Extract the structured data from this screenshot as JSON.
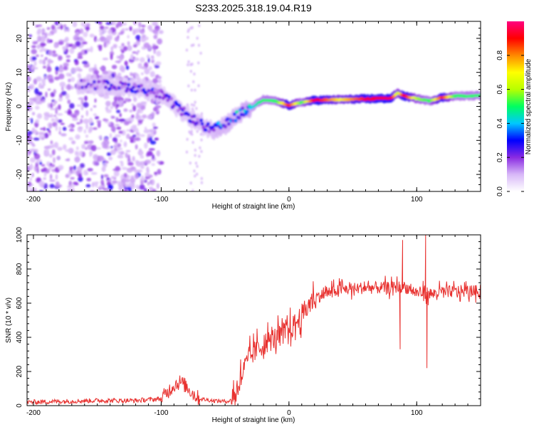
{
  "title": "S233.2025.318.19.04.R19",
  "chart_data": [
    {
      "type": "heatmap",
      "xlabel": "Height of straight line (km)",
      "ylabel": "Frequency (Hz)",
      "xlim": [
        -205,
        150
      ],
      "ylim": [
        -25,
        25
      ],
      "xticks": [
        -200,
        -100,
        0,
        100
      ],
      "yticks": [
        -20,
        -10,
        0,
        10,
        20
      ],
      "colorbar": {
        "label": "Normalized spectral amplitude",
        "range": [
          0,
          1
        ],
        "ticks": [
          0.0,
          0.2,
          0.4,
          0.6,
          0.8
        ],
        "tick_labels": [
          "0.0",
          "0.2",
          "0.4",
          "0.6",
          "0.8"
        ],
        "colors": [
          "#ffffff",
          "#d8b8f8",
          "#8a2be2",
          "#0000ff",
          "#00c8ff",
          "#00ff60",
          "#b8ff00",
          "#ffff00",
          "#ff8800",
          "#ff0000",
          "#ff0080"
        ]
      },
      "ridge": {
        "x": [
          -160,
          -140,
          -120,
          -100,
          -90,
          -80,
          -70,
          -60,
          -55,
          -50,
          -40,
          -30,
          -20,
          -10,
          0,
          10,
          20,
          40,
          60,
          80,
          85,
          90,
          100,
          110,
          120,
          130,
          150
        ],
        "freq_hz": [
          6.5,
          6.2,
          5.5,
          3.5,
          0.5,
          -2.5,
          -5.0,
          -7.0,
          -6.0,
          -5.5,
          -2.5,
          -0.5,
          2.0,
          1.5,
          0.3,
          1.2,
          1.8,
          2.0,
          2.2,
          2.4,
          4.0,
          3.0,
          2.3,
          1.6,
          2.6,
          3.0,
          3.2
        ],
        "peak_amplitude": [
          0.2,
          0.2,
          0.25,
          0.25,
          0.25,
          0.22,
          0.22,
          0.3,
          0.35,
          0.35,
          0.35,
          0.4,
          0.5,
          0.5,
          0.9,
          0.5,
          0.95,
          0.7,
          0.9,
          0.95,
          0.6,
          0.95,
          0.6,
          0.5,
          0.9,
          0.5,
          0.5
        ]
      },
      "noise_region_km": [
        -205,
        -110
      ]
    },
    {
      "type": "line",
      "xlabel": "Height of straight line (km)",
      "ylabel": "SNR (10 * v/v)",
      "xlim": [
        -205,
        150
      ],
      "ylim": [
        0,
        1000
      ],
      "xticks": [
        -200,
        -100,
        0,
        100
      ],
      "yticks": [
        0,
        200,
        400,
        600,
        800,
        1000
      ],
      "color": "#e8302e",
      "series": [
        {
          "name": "SNR",
          "x": [
            -205,
            -180,
            -150,
            -120,
            -100,
            -95,
            -90,
            -85,
            -80,
            -75,
            -70,
            -60,
            -50,
            -45,
            -40,
            -35,
            -30,
            -25,
            -20,
            -15,
            -10,
            -5,
            0,
            5,
            10,
            15,
            20,
            30,
            40,
            60,
            80,
            90,
            92,
            95,
            100,
            110,
            112,
            115,
            130,
            150
          ],
          "y": [
            20,
            25,
            30,
            30,
            40,
            80,
            120,
            140,
            110,
            70,
            40,
            30,
            25,
            30,
            120,
            220,
            290,
            330,
            360,
            380,
            400,
            420,
            440,
            480,
            530,
            580,
            630,
            660,
            680,
            690,
            690,
            700,
            690,
            680,
            660,
            660,
            650,
            660,
            670,
            670
          ]
        }
      ],
      "spikes": [
        {
          "x": 87,
          "y": 330
        },
        {
          "x": 89,
          "y": 970
        },
        {
          "x": 107,
          "y": 1000
        },
        {
          "x": 108,
          "y": 220
        }
      ]
    }
  ]
}
